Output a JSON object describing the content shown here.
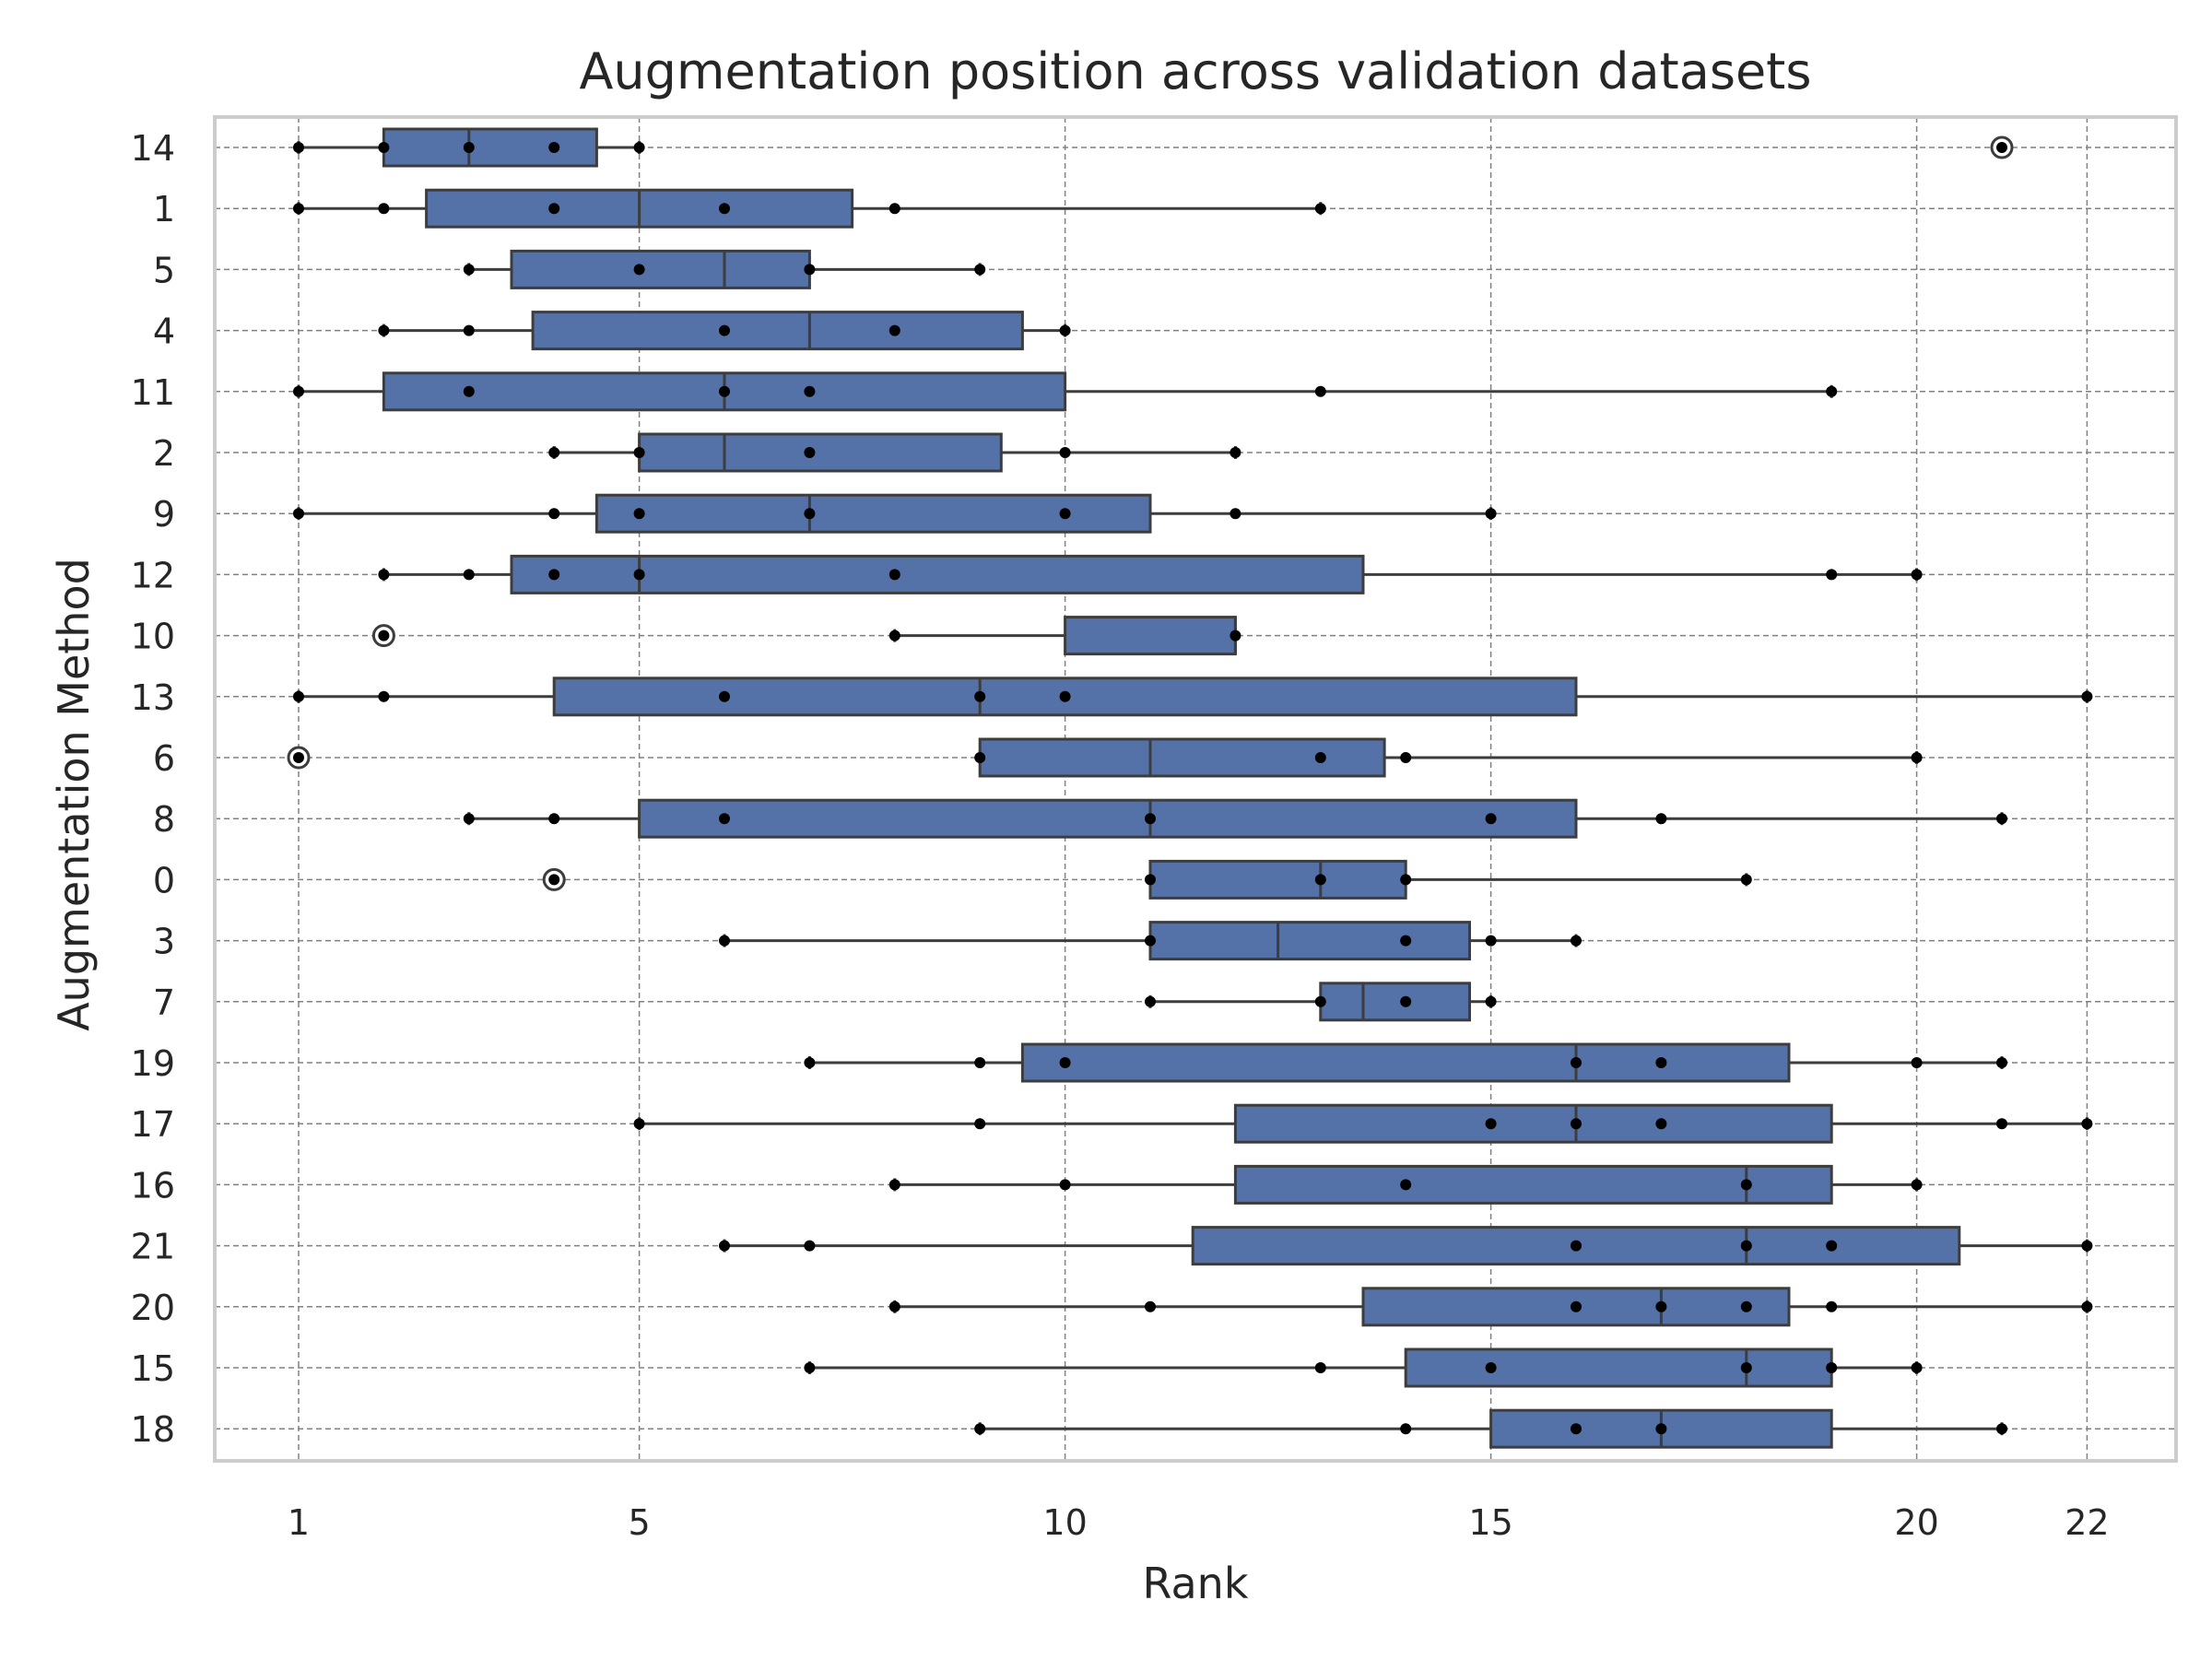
{
  "chart_data": {
    "type": "box",
    "orientation": "horizontal",
    "title": "Augmentation position across validation datasets",
    "xlabel": "Rank",
    "ylabel": "Augmentation Method",
    "xlim": [
      0,
      22.2
    ],
    "xticks": [
      1,
      5,
      10,
      15,
      20,
      22
    ],
    "grid": true,
    "box_color": "#5572a8",
    "edge_color": "#3d3d3d",
    "point_color": "#000000",
    "categories": [
      "14",
      "1",
      "5",
      "4",
      "11",
      "2",
      "9",
      "12",
      "10",
      "13",
      "6",
      "8",
      "0",
      "3",
      "7",
      "19",
      "17",
      "16",
      "21",
      "20",
      "15",
      "18"
    ],
    "boxes": [
      {
        "label": "14",
        "q1": 2,
        "median": 3,
        "q3": 4.5,
        "whisker_low": 1,
        "whisker_high": 5,
        "outliers": [
          21
        ],
        "points": [
          1,
          2,
          3,
          4,
          5,
          21
        ]
      },
      {
        "label": "1",
        "q1": 2.5,
        "median": 5,
        "q3": 7.5,
        "whisker_low": 1,
        "whisker_high": 13,
        "outliers": [],
        "points": [
          1,
          2,
          4,
          6,
          8,
          13
        ]
      },
      {
        "label": "5",
        "q1": 3.5,
        "median": 6,
        "q3": 7,
        "whisker_low": 3,
        "whisker_high": 9,
        "outliers": [],
        "points": [
          3,
          5,
          7,
          9
        ]
      },
      {
        "label": "4",
        "q1": 3.75,
        "median": 7,
        "q3": 9.5,
        "whisker_low": 2,
        "whisker_high": 10,
        "outliers": [],
        "points": [
          2,
          3,
          6,
          8,
          10
        ]
      },
      {
        "label": "11",
        "q1": 2,
        "median": 6,
        "q3": 10,
        "whisker_low": 1,
        "whisker_high": 19,
        "outliers": [],
        "points": [
          1,
          3,
          6,
          7,
          13,
          19
        ]
      },
      {
        "label": "2",
        "q1": 5,
        "median": 6,
        "q3": 9.25,
        "whisker_low": 4,
        "whisker_high": 12,
        "outliers": [],
        "points": [
          4,
          5,
          7,
          10,
          12
        ]
      },
      {
        "label": "9",
        "q1": 4.5,
        "median": 7,
        "q3": 11,
        "whisker_low": 1,
        "whisker_high": 15,
        "outliers": [],
        "points": [
          1,
          4,
          5,
          7,
          10,
          12,
          15
        ]
      },
      {
        "label": "12",
        "q1": 3.5,
        "median": 5,
        "q3": 13.5,
        "whisker_low": 2,
        "whisker_high": 20,
        "outliers": [],
        "points": [
          2,
          3,
          4,
          5,
          8,
          19,
          20
        ]
      },
      {
        "label": "10",
        "q1": 10,
        "median": 12,
        "q3": 12,
        "whisker_low": 8,
        "whisker_high": 12,
        "outliers": [
          2
        ],
        "points": [
          2,
          8,
          12
        ]
      },
      {
        "label": "13",
        "q1": 4,
        "median": 9,
        "q3": 16,
        "whisker_low": 1,
        "whisker_high": 22,
        "outliers": [],
        "points": [
          1,
          2,
          6,
          9,
          10,
          22
        ]
      },
      {
        "label": "6",
        "q1": 9,
        "median": 11,
        "q3": 13.75,
        "whisker_low": 9,
        "whisker_high": 20,
        "outliers": [
          1
        ],
        "points": [
          1,
          9,
          13,
          14,
          20
        ]
      },
      {
        "label": "8",
        "q1": 5,
        "median": 11,
        "q3": 16,
        "whisker_low": 3,
        "whisker_high": 21,
        "outliers": [],
        "points": [
          3,
          4,
          6,
          11,
          15,
          17,
          21
        ]
      },
      {
        "label": "0",
        "q1": 11,
        "median": 13,
        "q3": 14,
        "whisker_low": 11,
        "whisker_high": 18,
        "outliers": [
          4
        ],
        "points": [
          4,
          11,
          13,
          14,
          18
        ]
      },
      {
        "label": "3",
        "q1": 11,
        "median": 12.5,
        "q3": 14.75,
        "whisker_low": 6,
        "whisker_high": 16,
        "outliers": [],
        "points": [
          6,
          11,
          14,
          15,
          16
        ]
      },
      {
        "label": "7",
        "q1": 13,
        "median": 13.5,
        "q3": 14.75,
        "whisker_low": 11,
        "whisker_high": 15,
        "outliers": [],
        "points": [
          11,
          13,
          14,
          15
        ]
      },
      {
        "label": "19",
        "q1": 9.5,
        "median": 16,
        "q3": 18.5,
        "whisker_low": 7,
        "whisker_high": 21,
        "outliers": [],
        "points": [
          7,
          9,
          10,
          16,
          17,
          20,
          21
        ]
      },
      {
        "label": "17",
        "q1": 12,
        "median": 16,
        "q3": 19,
        "whisker_low": 5,
        "whisker_high": 22,
        "outliers": [],
        "points": [
          5,
          9,
          15,
          16,
          17,
          21,
          22
        ]
      },
      {
        "label": "16",
        "q1": 12,
        "median": 18,
        "q3": 19,
        "whisker_low": 8,
        "whisker_high": 20,
        "outliers": [],
        "points": [
          8,
          10,
          14,
          18,
          20
        ]
      },
      {
        "label": "21",
        "q1": 11.5,
        "median": 18,
        "q3": 20.5,
        "whisker_low": 6,
        "whisker_high": 22,
        "outliers": [],
        "points": [
          6,
          7,
          16,
          18,
          19,
          22
        ]
      },
      {
        "label": "20",
        "q1": 13.5,
        "median": 17,
        "q3": 18.5,
        "whisker_low": 8,
        "whisker_high": 22,
        "outliers": [],
        "points": [
          8,
          11,
          16,
          17,
          18,
          19,
          22
        ]
      },
      {
        "label": "15",
        "q1": 14,
        "median": 18,
        "q3": 19,
        "whisker_low": 7,
        "whisker_high": 20,
        "outliers": [],
        "points": [
          7,
          13,
          15,
          18,
          19,
          20
        ]
      },
      {
        "label": "18",
        "q1": 15,
        "median": 17,
        "q3": 19,
        "whisker_low": 9,
        "whisker_high": 21,
        "outliers": [],
        "points": [
          9,
          14,
          16,
          17,
          21
        ]
      }
    ]
  }
}
